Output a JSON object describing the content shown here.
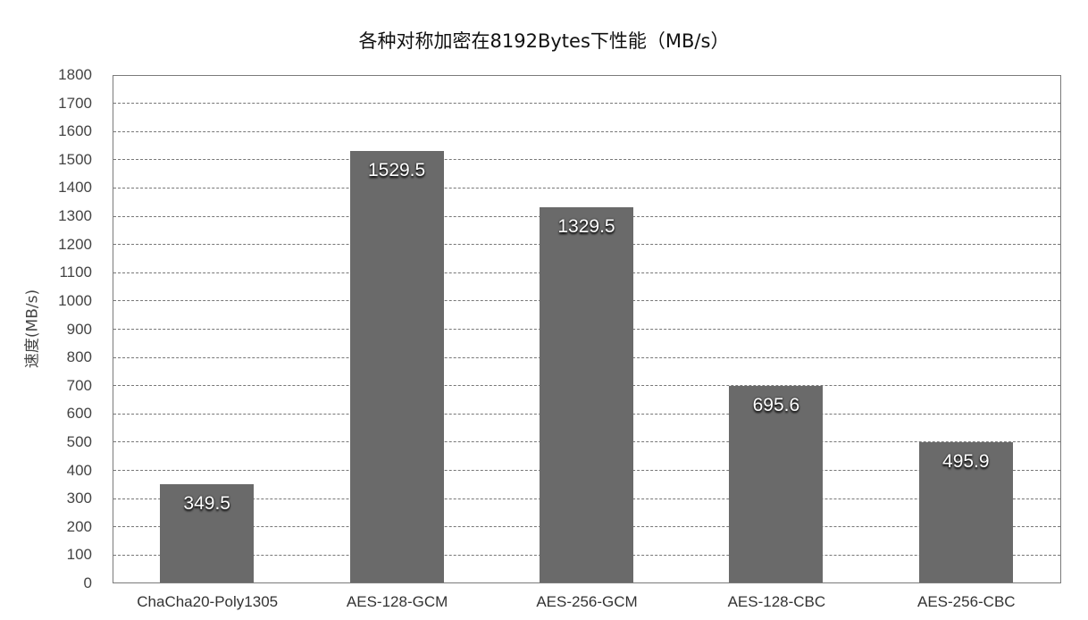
{
  "chart_data": {
    "type": "bar",
    "title": "各种对称加密在8192Bytes下性能（MB/s）",
    "xlabel": "",
    "ylabel": "速度(MB/s)",
    "ylim": [
      0,
      1800
    ],
    "yticks": [
      "0",
      "100",
      "200",
      "300",
      "400",
      "500",
      "600",
      "700",
      "800",
      "900",
      "1000",
      "1100",
      "1200",
      "1300",
      "1400",
      "1500",
      "1600",
      "1700",
      "1800"
    ],
    "grid": true,
    "categories": [
      "ChaCha20-Poly1305",
      "AES-128-GCM",
      "AES-256-GCM",
      "AES-128-CBC",
      "AES-256-CBC"
    ],
    "values": [
      349.5,
      1529.5,
      1329.5,
      695.6,
      495.9
    ],
    "data_labels": [
      "349.5",
      "1529.5",
      "1329.5",
      "695.6",
      "495.9"
    ],
    "bar_color": "#6a6a6a"
  }
}
